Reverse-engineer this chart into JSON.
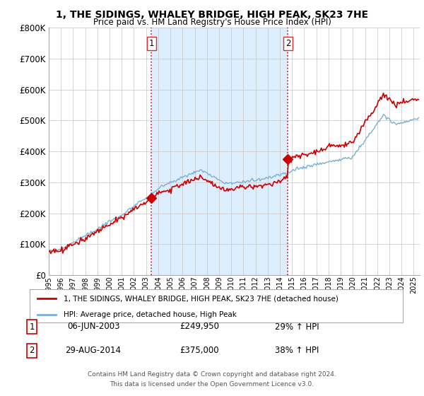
{
  "title": "1, THE SIDINGS, WHALEY BRIDGE, HIGH PEAK, SK23 7HE",
  "subtitle": "Price paid vs. HM Land Registry's House Price Index (HPI)",
  "ylim": [
    0,
    800000
  ],
  "xlim_start": 1995.0,
  "xlim_end": 2025.5,
  "transaction1_date": 2003.44,
  "transaction1_price": 249950,
  "transaction2_date": 2014.66,
  "transaction2_price": 375000,
  "transaction1_text": "06-JUN-2003",
  "transaction1_amount": "£249,950",
  "transaction1_hpi": "29% ↑ HPI",
  "transaction2_text": "29-AUG-2014",
  "transaction2_amount": "£375,000",
  "transaction2_hpi": "38% ↑ HPI",
  "legend_line1": "1, THE SIDINGS, WHALEY BRIDGE, HIGH PEAK, SK23 7HE (detached house)",
  "legend_line2": "HPI: Average price, detached house, High Peak",
  "footer1": "Contains HM Land Registry data © Crown copyright and database right 2024.",
  "footer2": "This data is licensed under the Open Government Licence v3.0.",
  "property_color": "#cc0000",
  "hpi_color": "#7ab0d4",
  "shade_color": "#ddeeff",
  "background_color": "#ffffff"
}
